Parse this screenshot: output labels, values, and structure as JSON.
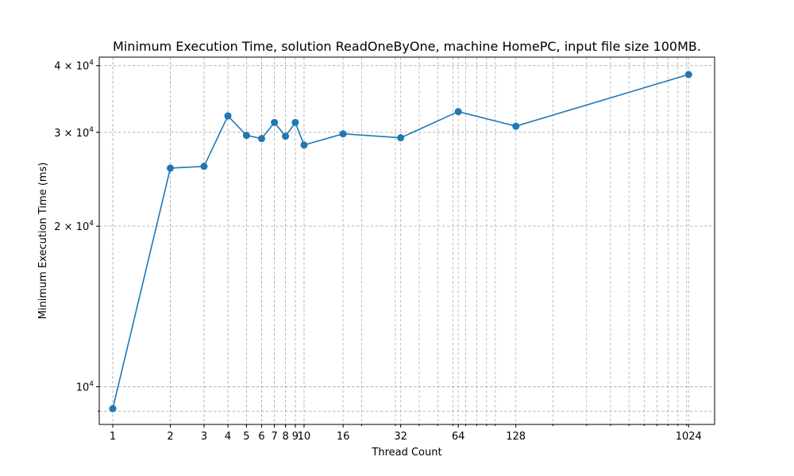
{
  "chart_data": {
    "type": "line",
    "title": "Minimum Execution Time, solution ReadOneByOne, machine HomePC, input file size 100MB.",
    "xlabel": "Thread Count",
    "ylabel": "Minimum Execution Time (ms)",
    "xscale": "log",
    "yscale": "log",
    "xlim": [
      0.85,
      1400
    ],
    "ylim": [
      8500,
      41500
    ],
    "grid": true,
    "color": "#1f77b4",
    "x_ticks": [
      1,
      2,
      3,
      4,
      5,
      6,
      7,
      8,
      9,
      10,
      16,
      32,
      64,
      128,
      1024
    ],
    "x_tick_labels": [
      "1",
      "2",
      "3",
      "4",
      "5",
      "6",
      "7",
      "8",
      "9",
      "10",
      "16",
      "32",
      "64",
      "128",
      "1024"
    ],
    "y_ticks": [
      {
        "value": 10000,
        "mantissa": "",
        "exp": "4"
      },
      {
        "value": 20000,
        "mantissa": "2",
        "exp": "4"
      },
      {
        "value": 30000,
        "mantissa": "3",
        "exp": "4"
      },
      {
        "value": 40000,
        "mantissa": "4",
        "exp": "4"
      }
    ],
    "series": [
      {
        "x": [
          1,
          2,
          3,
          4,
          5,
          6,
          7,
          8,
          9,
          10,
          16,
          32,
          64,
          128,
          1024
        ],
        "y": [
          9100,
          25700,
          25900,
          32200,
          29600,
          29200,
          31300,
          29500,
          31300,
          28400,
          29800,
          29300,
          32800,
          30800,
          38500
        ]
      }
    ]
  }
}
